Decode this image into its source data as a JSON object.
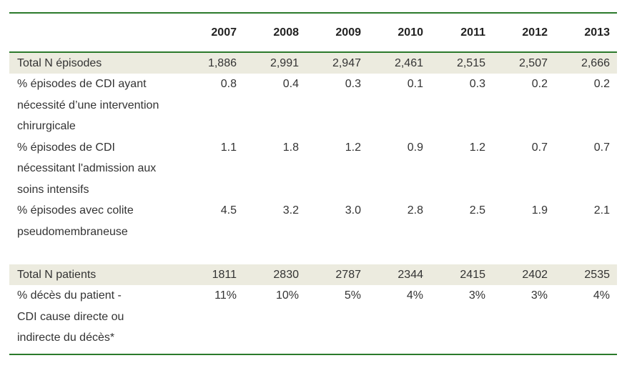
{
  "table": {
    "years": [
      "2007",
      "2008",
      "2009",
      "2010",
      "2011",
      "2012",
      "2013"
    ],
    "rows": [
      {
        "label_lines": [
          "Total N épisodes"
        ],
        "values": [
          "1,886",
          "2,991",
          "2,947",
          "2,461",
          "2,515",
          "2,507",
          "2,666"
        ]
      },
      {
        "label_lines": [
          "% épisodes de CDI ayant",
          "nécessité d’une intervention",
          "chirurgicale"
        ],
        "values": [
          "0.8",
          "0.4",
          "0.3",
          "0.1",
          "0.3",
          "0.2",
          "0.2"
        ]
      },
      {
        "label_lines": [
          "% épisodes de CDI",
          "nécessitant l'admission aux",
          "soins intensifs"
        ],
        "values": [
          "1.1",
          "1.8",
          "1.2",
          "0.9",
          "1.2",
          "0.7",
          "0.7"
        ]
      },
      {
        "label_lines": [
          "% épisodes avec colite",
          "pseudomembraneuse"
        ],
        "values": [
          "4.5",
          "3.2",
          "3.0",
          "2.8",
          "2.5",
          "1.9",
          "2.1"
        ]
      },
      {
        "label_lines": [
          "Total N patients"
        ],
        "values": [
          "1811",
          "2830",
          "2787",
          "2344",
          "2415",
          "2402",
          "2535"
        ]
      },
      {
        "label_lines": [
          "% décès du patient -",
          "CDI cause directe ou",
          "indirecte du décès*"
        ],
        "values": [
          "11%",
          "10%",
          "5%",
          "4%",
          "3%",
          "3%",
          "4%"
        ]
      }
    ]
  }
}
